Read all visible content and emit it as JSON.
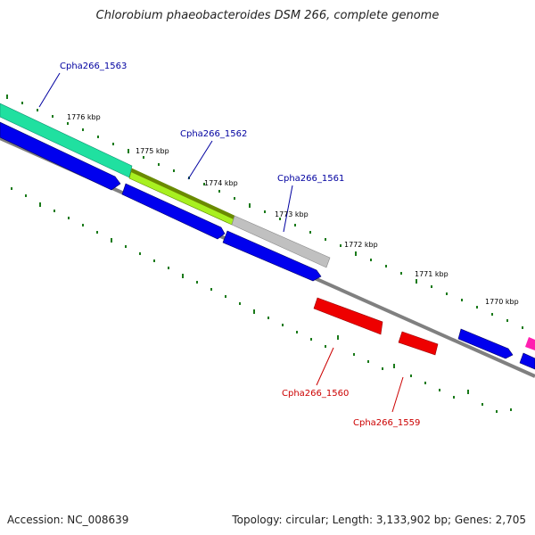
{
  "title": "Chlorobium phaeobacteroides DSM 266, complete genome",
  "footer": {
    "accession": "Accession: NC_008639",
    "topology": "Topology: circular; Length: 3,133,902 bp; Genes: 2,705"
  },
  "scale_labels": [
    "1776 kbp",
    "1775 kbp",
    "1774 kbp",
    "1773 kbp",
    "1772 kbp",
    "1771 kbp",
    "1770 kbp"
  ],
  "gene_labels": [
    {
      "name": "Cpha266_1563",
      "strand": "plus",
      "color": "#0000a0"
    },
    {
      "name": "Cpha266_1562",
      "strand": "plus",
      "color": "#0000a0"
    },
    {
      "name": "Cpha266_1561",
      "strand": "plus",
      "color": "#0000a0"
    },
    {
      "name": "Cpha266_1560",
      "strand": "minus",
      "color": "#cc0000"
    },
    {
      "name": "Cpha266_1559",
      "strand": "minus",
      "color": "#cc0000"
    }
  ],
  "colors": {
    "tick": "#1a7a1a",
    "backbone": "#808080",
    "cds": "#0000ee",
    "minus_gene": "#ee0000",
    "gene_1563": "#20e0a0",
    "gene_1562_a": "#6b8a00",
    "gene_1562_b": "#a8f020",
    "gene_1561": "#c0c0c0",
    "edge_gene": "#ff20b0"
  }
}
